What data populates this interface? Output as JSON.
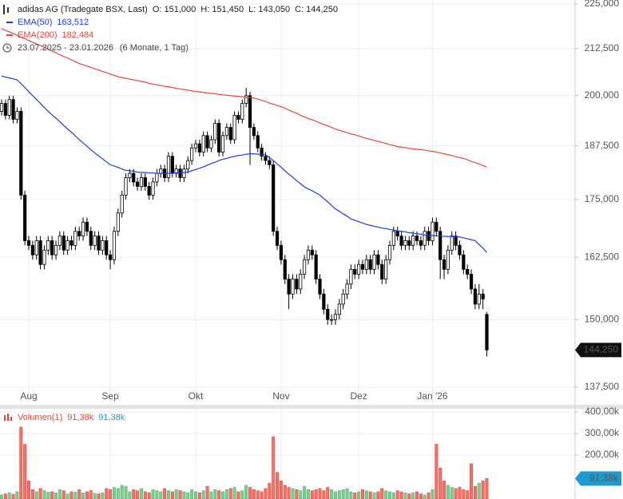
{
  "chart_data": [
    {
      "type": "candlestick",
      "title": "adidas AG (Tradegate BSX, Last)",
      "ohlc_labels": [
        "O: 151,000",
        "H: 151,450",
        "L: 143,050",
        "C: 144,250"
      ],
      "period": "23.07.2025 - 23.01.2026",
      "period_note": "(6 Monate, 1 Tag)",
      "categories": [
        null,
        null,
        null,
        null,
        null,
        null,
        null,
        "Aug",
        null,
        null,
        null,
        null,
        null,
        null,
        null,
        null,
        null,
        null,
        null,
        null,
        null,
        null,
        null,
        null,
        null,
        null,
        null,
        null,
        "Sep",
        null,
        null,
        null,
        null,
        null,
        null,
        null,
        null,
        null,
        null,
        null,
        null,
        null,
        null,
        null,
        null,
        null,
        null,
        null,
        null,
        null,
        "Okt",
        null,
        null,
        null,
        null,
        null,
        null,
        null,
        null,
        null,
        null,
        null,
        null,
        null,
        null,
        null,
        null,
        null,
        null,
        null,
        null,
        null,
        "Nov",
        null,
        null,
        null,
        null,
        null,
        null,
        null,
        null,
        null,
        null,
        null,
        null,
        null,
        null,
        null,
        null,
        null,
        null,
        null,
        "Dez",
        null,
        null,
        null,
        null,
        null,
        null,
        null,
        null,
        null,
        null,
        null,
        null,
        null,
        null,
        null,
        null,
        null,
        null,
        "Jan '26",
        null,
        null,
        null,
        null,
        null,
        null,
        null,
        null,
        null,
        null,
        null,
        null,
        null,
        null
      ],
      "open": [
        196,
        198,
        195,
        199,
        194,
        196,
        176,
        166,
        165,
        163,
        166,
        161,
        164,
        166,
        163,
        165,
        167,
        164,
        166,
        165,
        168,
        167,
        170,
        168,
        165,
        167,
        164,
        166,
        163,
        162,
        168,
        172,
        176,
        180,
        181,
        179,
        178,
        180,
        178,
        176,
        179,
        181,
        182,
        180,
        185,
        181,
        182,
        180,
        182,
        184,
        187,
        188,
        186,
        190,
        187,
        189,
        193,
        186,
        190,
        192,
        189,
        195,
        194,
        198,
        200,
        192,
        190,
        187,
        185,
        184,
        183,
        168,
        165,
        162,
        158,
        155,
        158,
        156,
        159,
        162,
        164,
        163,
        158,
        155,
        152,
        150,
        150,
        151,
        153,
        155,
        157,
        160,
        159,
        161,
        160,
        162,
        160,
        163,
        161,
        158,
        162,
        165,
        168,
        167,
        165,
        166,
        165,
        167,
        166,
        165,
        168,
        166,
        170,
        168,
        162,
        160,
        164,
        167,
        165,
        163,
        160,
        159,
        156,
        153,
        155,
        151
      ],
      "high": [
        199,
        199,
        200,
        200,
        197,
        197,
        177,
        167,
        166,
        167,
        167,
        165,
        167,
        167,
        166,
        168,
        168,
        167,
        167,
        169,
        169,
        171,
        171,
        169,
        168,
        168,
        167,
        167,
        164,
        169,
        173,
        177,
        181,
        182,
        182,
        180,
        181,
        181,
        179,
        180,
        182,
        183,
        183,
        186,
        186,
        183,
        183,
        183,
        185,
        188,
        189,
        189,
        191,
        191,
        190,
        194,
        194,
        191,
        193,
        193,
        196,
        196,
        199,
        202,
        201,
        193,
        191,
        188,
        186,
        185,
        184,
        169,
        166,
        163,
        159,
        159,
        159,
        160,
        163,
        165,
        165,
        164,
        159,
        156,
        153,
        151,
        152,
        154,
        156,
        158,
        161,
        161,
        162,
        162,
        163,
        163,
        164,
        164,
        162,
        163,
        166,
        169,
        169,
        168,
        167,
        167,
        168,
        168,
        167,
        169,
        169,
        171,
        171,
        169,
        163,
        165,
        168,
        168,
        166,
        164,
        161,
        160,
        157,
        157,
        156,
        151.45
      ],
      "low": [
        195,
        194,
        194,
        193,
        193,
        175,
        165,
        164,
        162,
        162,
        160,
        160,
        163,
        162,
        162,
        164,
        163,
        163,
        164,
        164,
        166,
        166,
        167,
        164,
        164,
        163,
        163,
        162,
        160,
        161,
        167,
        171,
        175,
        179,
        178,
        177,
        177,
        177,
        175,
        175,
        178,
        180,
        179,
        179,
        180,
        180,
        179,
        179,
        181,
        183,
        186,
        185,
        185,
        186,
        186,
        188,
        185,
        185,
        189,
        188,
        188,
        193,
        193,
        197,
        183,
        189,
        186,
        184,
        183,
        182,
        167,
        164,
        161,
        157,
        152,
        154,
        155,
        155,
        158,
        161,
        162,
        157,
        154,
        151,
        149,
        149,
        149,
        150,
        152,
        154,
        156,
        158,
        158,
        159,
        159,
        159,
        159,
        160,
        157,
        157,
        161,
        164,
        166,
        164,
        164,
        164,
        164,
        165,
        164,
        164,
        165,
        165,
        167,
        158,
        158,
        159,
        163,
        164,
        162,
        159,
        158,
        155,
        152,
        152,
        152,
        143.05
      ],
      "close": [
        198,
        195,
        199,
        194,
        196,
        176,
        166,
        165,
        163,
        166,
        161,
        164,
        166,
        163,
        165,
        167,
        164,
        166,
        165,
        168,
        167,
        170,
        168,
        165,
        167,
        164,
        166,
        163,
        162,
        168,
        172,
        176,
        180,
        181,
        179,
        178,
        180,
        178,
        176,
        179,
        181,
        182,
        180,
        185,
        181,
        182,
        180,
        182,
        184,
        187,
        188,
        186,
        190,
        187,
        189,
        193,
        186,
        190,
        192,
        189,
        195,
        194,
        198,
        200,
        192,
        190,
        187,
        185,
        184,
        183,
        168,
        165,
        162,
        158,
        155,
        158,
        156,
        159,
        162,
        164,
        163,
        158,
        155,
        152,
        150,
        150,
        151,
        153,
        155,
        157,
        160,
        159,
        161,
        160,
        162,
        160,
        163,
        161,
        158,
        162,
        165,
        168,
        167,
        165,
        166,
        165,
        167,
        166,
        165,
        168,
        166,
        170,
        168,
        162,
        160,
        164,
        167,
        165,
        163,
        160,
        159,
        156,
        153,
        155,
        154,
        144.25
      ],
      "last_label": "144,250",
      "up_color": "#ffffff",
      "down_color": "#000000",
      "series": [
        {
          "name": "EMA(50)",
          "color": "#1c3fd8",
          "value_label": "163,512",
          "values": [
            205.1,
            204.85,
            204.6,
            204.35,
            204.1,
            203.1,
            202.1,
            201.0,
            200.0,
            199.0,
            198.0,
            197.0,
            196.0,
            195.1,
            194.3,
            193.4,
            192.5,
            191.6,
            190.8,
            189.9,
            189.0,
            188.2,
            187.4,
            186.6,
            185.8,
            185.1,
            184.4,
            183.7,
            183.0,
            182.7,
            182.4,
            182.0,
            181.7,
            181.6,
            181.5,
            181.3,
            181.2,
            181.2,
            181.1,
            181.1,
            181.0,
            181.0,
            181.0,
            181.0,
            181.0,
            181.1,
            181.2,
            181.2,
            181.3,
            181.6,
            181.9,
            182.2,
            182.5,
            182.9,
            183.3,
            183.6,
            184.0,
            184.3,
            184.5,
            184.8,
            185.0,
            185.2,
            185.3,
            185.5,
            185.6,
            185.6,
            185.5,
            185.5,
            185.4,
            184.7,
            184.0,
            183.2,
            182.4,
            181.6,
            180.8,
            180.1,
            179.3,
            178.6,
            177.9,
            177.4,
            177.0,
            176.5,
            176.0,
            175.2,
            174.5,
            173.7,
            172.9,
            172.4,
            171.8,
            171.3,
            170.7,
            170.4,
            170.1,
            169.8,
            169.5,
            169.3,
            169.1,
            168.9,
            168.7,
            168.6,
            168.4,
            168.3,
            168.1,
            168.0,
            167.9,
            167.7,
            167.6,
            167.5,
            167.4,
            167.2,
            167.1,
            167.1,
            167.0,
            167.0,
            166.9,
            166.9,
            166.9,
            166.8,
            166.8,
            166.6,
            166.4,
            166.2,
            166.0,
            165.2,
            164.4,
            163.512
          ]
        },
        {
          "name": "EMA(200)",
          "color": "#e5473b",
          "value_label": "182,484",
          "values": [
            218.0,
            217.5,
            217.1,
            216.6,
            216.1,
            215.6,
            215.2,
            214.7,
            214.2,
            213.7,
            213.3,
            212.8,
            212.3,
            211.8,
            211.3,
            210.8,
            210.3,
            209.9,
            209.4,
            208.9,
            208.4,
            208.1,
            207.7,
            207.4,
            207.0,
            206.7,
            206.3,
            206.0,
            205.6,
            205.3,
            204.9,
            204.7,
            204.5,
            204.3,
            204.1,
            203.9,
            203.7,
            203.5,
            203.2,
            203.0,
            202.8,
            202.6,
            202.4,
            202.3,
            202.1,
            201.9,
            201.7,
            201.6,
            201.4,
            201.2,
            201.1,
            201.0,
            200.8,
            200.7,
            200.6,
            200.5,
            200.3,
            200.2,
            200.1,
            200.0,
            199.9,
            199.8,
            199.7,
            199.6,
            199.5,
            199.4,
            199.1,
            198.8,
            198.5,
            198.1,
            197.8,
            197.5,
            197.2,
            196.8,
            196.3,
            195.9,
            195.5,
            195.0,
            194.6,
            194.2,
            193.9,
            193.5,
            193.1,
            192.7,
            192.4,
            192.0,
            191.6,
            191.3,
            191.0,
            190.7,
            190.4,
            190.2,
            189.9,
            189.6,
            189.3,
            189.1,
            188.8,
            188.6,
            188.3,
            188.1,
            187.8,
            187.6,
            187.3,
            187.2,
            187.1,
            186.9,
            186.8,
            186.7,
            186.6,
            186.5,
            186.3,
            186.2,
            186.0,
            185.8,
            185.6,
            185.4,
            185.2,
            184.9,
            184.7,
            184.5,
            184.2,
            183.8,
            183.5,
            183.2,
            182.8,
            182.484
          ]
        }
      ],
      "ylim": [
        134.44,
        226.15
      ],
      "yticks": [
        {
          "value": 137.5,
          "label": "137,500"
        },
        {
          "value": 150,
          "label": "150,000"
        },
        {
          "value": 162.5,
          "label": "162,500"
        },
        {
          "value": 175,
          "label": "175,000"
        },
        {
          "value": 187.5,
          "label": "187,500"
        },
        {
          "value": 200,
          "label": "200,000"
        },
        {
          "value": 212.5,
          "label": "212,500"
        },
        {
          "value": 225,
          "label": "225,000"
        }
      ],
      "log_scale": true,
      "grid": true
    },
    {
      "type": "bar",
      "title": "Volumen(1)",
      "legend_values": [
        "91,38k",
        "91,38k"
      ],
      "legend_colors": [
        "#e5473b",
        "#1e9bd0"
      ],
      "values": [
        15,
        20,
        25,
        18,
        30,
        330,
        250,
        80,
        40,
        30,
        45,
        35,
        28,
        30,
        25,
        40,
        35,
        20,
        30,
        28,
        40,
        25,
        30,
        35,
        22,
        20,
        25,
        45,
        40,
        50,
        45,
        60,
        55,
        30,
        40,
        35,
        45,
        30,
        25,
        40,
        35,
        30,
        45,
        35,
        30,
        40,
        35,
        30,
        25,
        40,
        30,
        25,
        35,
        55,
        30,
        40,
        35,
        30,
        40,
        45,
        50,
        30,
        35,
        60,
        50,
        40,
        35,
        30,
        45,
        70,
        285,
        120,
        80,
        60,
        50,
        45,
        40,
        35,
        55,
        40,
        35,
        40,
        45,
        35,
        50,
        40,
        30,
        35,
        40,
        45,
        30,
        25,
        30,
        40,
        35,
        30,
        25,
        30,
        45,
        35,
        30,
        25,
        35,
        30,
        25,
        20,
        25,
        30,
        20,
        15,
        25,
        40,
        250,
        140,
        80,
        60,
        50,
        45,
        50,
        40,
        35,
        160,
        55,
        70,
        80,
        91.38
      ],
      "last_label": "91,38k",
      "last_label_color": "#1e9bd0",
      "up_color": "#55b86f",
      "down_color": "#e5473b",
      "ylim": [
        0,
        415
      ],
      "yticks": [
        {
          "value": 200,
          "label": "200,00k"
        },
        {
          "value": 300,
          "label": "300,00k"
        },
        {
          "value": 400,
          "label": "400,00k"
        }
      ],
      "grid": true
    }
  ]
}
